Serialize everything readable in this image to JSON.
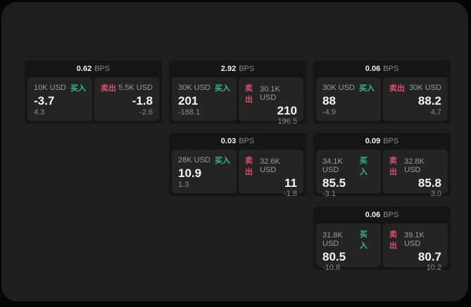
{
  "labels": {
    "bps": "BPS",
    "buy": "买入",
    "sell": "卖出"
  },
  "colors": {
    "outer_bg": "#050505",
    "window_bg": "#1e1e1e",
    "card_bg": "#151515",
    "panel_bg": "#242424",
    "buy_green": "#2ebd85",
    "sell_red": "#d9506e",
    "value_white": "#f5f5f5",
    "muted_gray": "#8b8b8b"
  },
  "cards": [
    {
      "bps": "0.62",
      "buy": {
        "notional": "10K USD",
        "value": "-3.7",
        "sub": "4.3"
      },
      "sell": {
        "notional": "5.5K USD",
        "value": "-1.8",
        "sub": "-2.6"
      }
    },
    {
      "bps": "2.92",
      "buy": {
        "notional": "30K USD",
        "value": "201",
        "sub": "-188.1"
      },
      "sell": {
        "notional": "30.1K USD",
        "value": "210",
        "sub": "196.5"
      }
    },
    {
      "bps": "0.06",
      "buy": {
        "notional": "30K USD",
        "value": "88",
        "sub": "-4.9"
      },
      "sell": {
        "notional": "30K USD",
        "value": "88.2",
        "sub": "4.7"
      }
    },
    {
      "bps": "0.03",
      "buy": {
        "notional": "28K USD",
        "value": "10.9",
        "sub": "1.3"
      },
      "sell": {
        "notional": "32.6K USD",
        "value": "11",
        "sub": "-1.8"
      }
    },
    {
      "bps": "0.09",
      "buy": {
        "notional": "34.1K USD",
        "value": "85.5",
        "sub": "-3.1"
      },
      "sell": {
        "notional": "32.8K USD",
        "value": "85.8",
        "sub": "3.0"
      }
    },
    {
      "bps": "0.06",
      "buy": {
        "notional": "31.8K USD",
        "value": "80.5",
        "sub": "-10.8"
      },
      "sell": {
        "notional": "39.1K USD",
        "value": "80.7",
        "sub": "10.2"
      }
    }
  ]
}
